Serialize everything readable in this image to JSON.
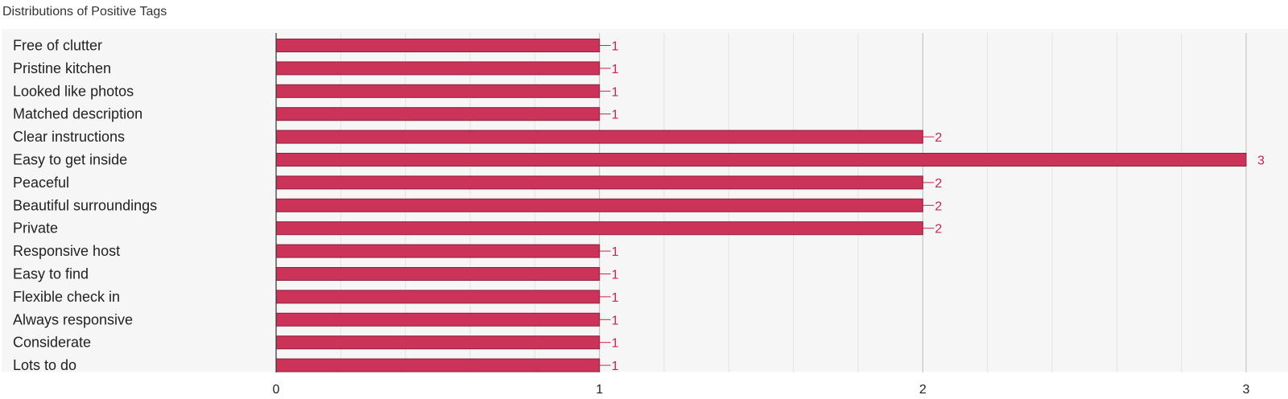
{
  "chart_data": {
    "type": "bar",
    "orientation": "horizontal",
    "title": "Distributions of Positive Tags",
    "categories": [
      "Free of clutter",
      "Pristine kitchen",
      "Looked like photos",
      "Matched description",
      "Clear instructions",
      "Easy to get inside",
      "Peaceful",
      "Beautiful surroundings",
      "Private",
      "Responsive host",
      "Easy to find",
      "Flexible check in",
      "Always responsive",
      "Considerate",
      "Lots to do"
    ],
    "values": [
      1,
      1,
      1,
      1,
      2,
      3,
      2,
      2,
      2,
      1,
      1,
      1,
      1,
      1,
      1
    ],
    "value_labels": [
      "1",
      "1",
      "1",
      "1",
      "2",
      "3",
      "2",
      "2",
      "2",
      "1",
      "1",
      "1",
      "1",
      "1",
      "1"
    ],
    "xlim": [
      0,
      3
    ],
    "xticks": [
      0,
      1,
      2,
      3
    ],
    "xtick_labels": [
      "0",
      "1",
      "2",
      "3"
    ],
    "minor_grid_step": 0.2,
    "grid": true,
    "legend": "none",
    "colors": {
      "bar_fill": "#cc3358",
      "bar_stroke": "#8e1f3c",
      "data_label": "#c4264f",
      "plot_background": "#f6f6f6",
      "major_grid": "#bdbdbd",
      "minor_grid": "#e3e3e3",
      "axis_line": "#333333"
    }
  }
}
